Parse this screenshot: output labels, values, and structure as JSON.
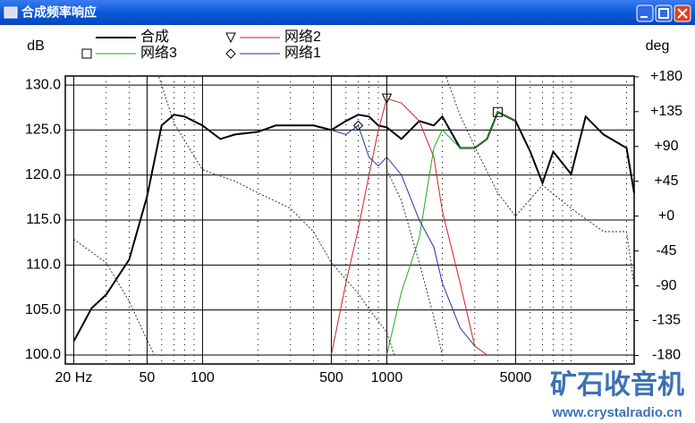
{
  "window_title": "合成频率响应",
  "watermark": {
    "text": "矿石收音机",
    "url": "www.crystalradio.cn"
  },
  "chart_data": {
    "type": "line",
    "ylabel": "dB",
    "y2label": "deg",
    "xscale": "log",
    "grid": true,
    "xlim": [
      18,
      22000
    ],
    "ylim": [
      99,
      131
    ],
    "y2lim": [
      -191,
      181
    ],
    "xticks": [
      {
        "value": 20,
        "label": "20 Hz"
      },
      50,
      100,
      500,
      1000,
      5000
    ],
    "xminorticks": [
      30,
      40,
      60,
      70,
      80,
      90,
      200,
      300,
      400,
      600,
      700,
      800,
      900,
      2000,
      3000,
      4000,
      6000,
      7000,
      8000,
      9000,
      10000,
      20000
    ],
    "yticks": [
      {
        "value": 100,
        "label": "100.0"
      },
      {
        "value": 105,
        "label": "105.0"
      },
      {
        "value": 110,
        "label": "110.0"
      },
      {
        "value": 115,
        "label": "115.0"
      },
      {
        "value": 120,
        "label": "120.0"
      },
      {
        "value": 125,
        "label": "125.0"
      },
      {
        "value": 130,
        "label": "130.0"
      }
    ],
    "y2ticks": [
      {
        "value": 180,
        "label": "+180"
      },
      {
        "value": 135,
        "label": "+135"
      },
      {
        "value": 90,
        "label": "+90"
      },
      {
        "value": 45,
        "label": "+45"
      },
      {
        "value": 0,
        "label": "+0"
      },
      -45,
      -90,
      -135,
      -180
    ],
    "x": [
      20,
      25,
      30,
      40,
      50,
      60,
      70,
      80,
      100,
      125,
      150,
      200,
      250,
      300,
      400,
      500,
      600,
      700,
      800,
      900,
      1000,
      1200,
      1500,
      1800,
      2000,
      2500,
      3000,
      3500,
      4000,
      5000,
      6000,
      7000,
      8000,
      10000,
      12000,
      15000,
      20000,
      22000
    ],
    "series": [
      {
        "name": "合成",
        "color": "#000000",
        "width": 2,
        "values": [
          101.5,
          105.2,
          106.7,
          110.6,
          117.6,
          125.5,
          126.7,
          126.5,
          125.5,
          124.0,
          124.5,
          124.8,
          125.5,
          125.5,
          125.5,
          125.0,
          126.0,
          126.7,
          126.5,
          125.5,
          125.3,
          124.0,
          126.0,
          125.5,
          126.5,
          123.0,
          123.0,
          124.0,
          127.0,
          126.0,
          122.6,
          119.1,
          122.6,
          120.1,
          126.5,
          124.5,
          123.0,
          118.0
        ]
      },
      {
        "name": "网络2",
        "color": "#cc2222",
        "width": 1,
        "marker": "triangle",
        "values": [
          null,
          null,
          null,
          null,
          null,
          null,
          null,
          null,
          null,
          null,
          null,
          null,
          null,
          null,
          null,
          100.0,
          108.0,
          114.0,
          120.0,
          125.0,
          128.5,
          128.0,
          126.0,
          122.0,
          116.0,
          108.0,
          101.0,
          100.0,
          null,
          null,
          null,
          null,
          null,
          null,
          null,
          null,
          null,
          null
        ]
      },
      {
        "name": "网络3",
        "color": "#22aa22",
        "width": 1,
        "marker": "square",
        "values": [
          null,
          null,
          null,
          null,
          null,
          null,
          null,
          null,
          null,
          null,
          null,
          null,
          null,
          null,
          null,
          null,
          null,
          null,
          null,
          null,
          100.0,
          107.0,
          113.0,
          123.0,
          125.0,
          123.0,
          123.0,
          124.0,
          127.0,
          126.0,
          null,
          null,
          null,
          null,
          null,
          null,
          null,
          null
        ]
      },
      {
        "name": "网络1",
        "color": "#2233aa",
        "width": 1,
        "marker": "diamond",
        "values": [
          null,
          null,
          null,
          null,
          null,
          null,
          null,
          null,
          null,
          null,
          null,
          null,
          null,
          null,
          null,
          125.0,
          124.5,
          125.5,
          122.0,
          121.0,
          122.0,
          120.0,
          115.0,
          112.0,
          108.0,
          103.0,
          101.0,
          null,
          null,
          null,
          null,
          null,
          null,
          null,
          null,
          null,
          null,
          null
        ]
      },
      {
        "axis": "y2",
        "dashed": true,
        "color": "#333333",
        "width": 1,
        "x": [
          20,
          30,
          40,
          50,
          55,
          57,
          58,
          70,
          100,
          150,
          200,
          300,
          400,
          500,
          700,
          800,
          1000,
          1100
        ],
        "values": [
          -30,
          -60,
          -110,
          -160,
          -180,
          null,
          180,
          120,
          60,
          45,
          30,
          10,
          -20,
          -60,
          -100,
          -120,
          -150,
          -180
        ]
      },
      {
        "axis": "y2",
        "dashed": true,
        "color": "#333333",
        "width": 1,
        "x": [
          1000,
          1200,
          1500,
          1800,
          2000,
          2050,
          2100,
          2500,
          3000,
          4000,
          5000,
          7000,
          10000,
          15000,
          20000,
          22000
        ],
        "values": [
          60,
          20,
          -60,
          -130,
          -180,
          null,
          180,
          130,
          90,
          30,
          0,
          40,
          10,
          -20,
          -20,
          -90
        ]
      }
    ]
  }
}
